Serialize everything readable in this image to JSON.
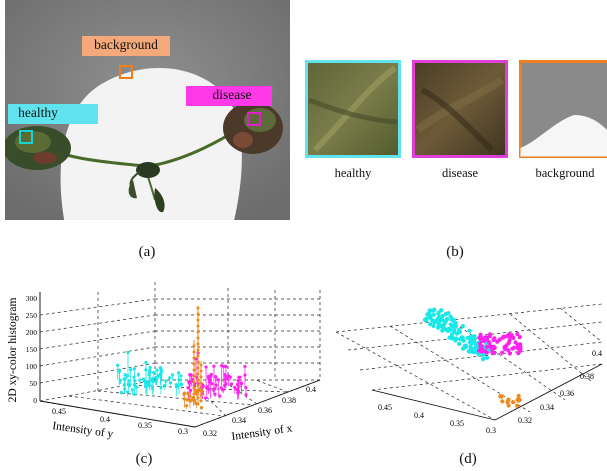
{
  "panels": {
    "a": {
      "caption": "(a)",
      "labels": {
        "background": "background",
        "healthy": "healthy",
        "disease": "disease"
      },
      "colors": {
        "background": "#f4a97a",
        "background_box": "#ee7f1e",
        "healthy": "#5fe4ef",
        "healthy_box": "#16d4d4",
        "disease": "#ff39e8",
        "disease_box": "#e11fd0"
      }
    },
    "b": {
      "caption": "(b)",
      "crops": [
        {
          "label": "healthy",
          "border": "#5fe4ef"
        },
        {
          "label": "disease",
          "border": "#e040d8"
        },
        {
          "label": "background",
          "border": "#ee7f1e"
        }
      ]
    },
    "c": {
      "caption": "(c)",
      "zlabel": "2D xy-color histogram",
      "ylabel": "Intensity of y",
      "xlabel": "Intensity of x",
      "z_ticks": [
        "0",
        "50",
        "100",
        "150",
        "200",
        "250",
        "300"
      ],
      "y_ticks": [
        "0.45",
        "0.4",
        "0.35",
        "0.3"
      ],
      "x_ticks": [
        "0.32",
        "0.34",
        "0.36",
        "0.38",
        "0.4"
      ]
    },
    "d": {
      "caption": "(d)",
      "y_ticks": [
        "0.45",
        "0.4",
        "0.35",
        "0.3"
      ],
      "x_ticks": [
        "0.32",
        "0.34",
        "0.36",
        "0.38",
        "0.4"
      ]
    }
  },
  "chart_data": [
    {
      "type": "scatter",
      "panel": "c",
      "projection": "3d",
      "zlabel": "2D xy-color histogram",
      "ylabel": "Intensity of y",
      "xlabel": "Intensity of x",
      "zlim": [
        0,
        300
      ],
      "grid": true,
      "series": [
        {
          "class": "healthy",
          "color": "#18e8e8",
          "x_range": [
            0.33,
            0.36
          ],
          "y_range": [
            0.38,
            0.43
          ],
          "peak": 60
        },
        {
          "class": "disease",
          "color": "#ff22ee",
          "x_range": [
            0.37,
            0.4
          ],
          "y_range": [
            0.34,
            0.37
          ],
          "peak": 80
        },
        {
          "class": "background",
          "color": "#ee8a1a",
          "x_range": [
            0.31,
            0.32
          ],
          "y_range": [
            0.31,
            0.33
          ],
          "peak": 250
        }
      ]
    },
    {
      "type": "scatter",
      "panel": "d",
      "projection": "3d-top",
      "grid": true,
      "series": [
        {
          "class": "healthy",
          "color": "#18e8e8"
        },
        {
          "class": "disease",
          "color": "#ff22ee"
        },
        {
          "class": "background",
          "color": "#ee8a1a"
        }
      ]
    }
  ]
}
